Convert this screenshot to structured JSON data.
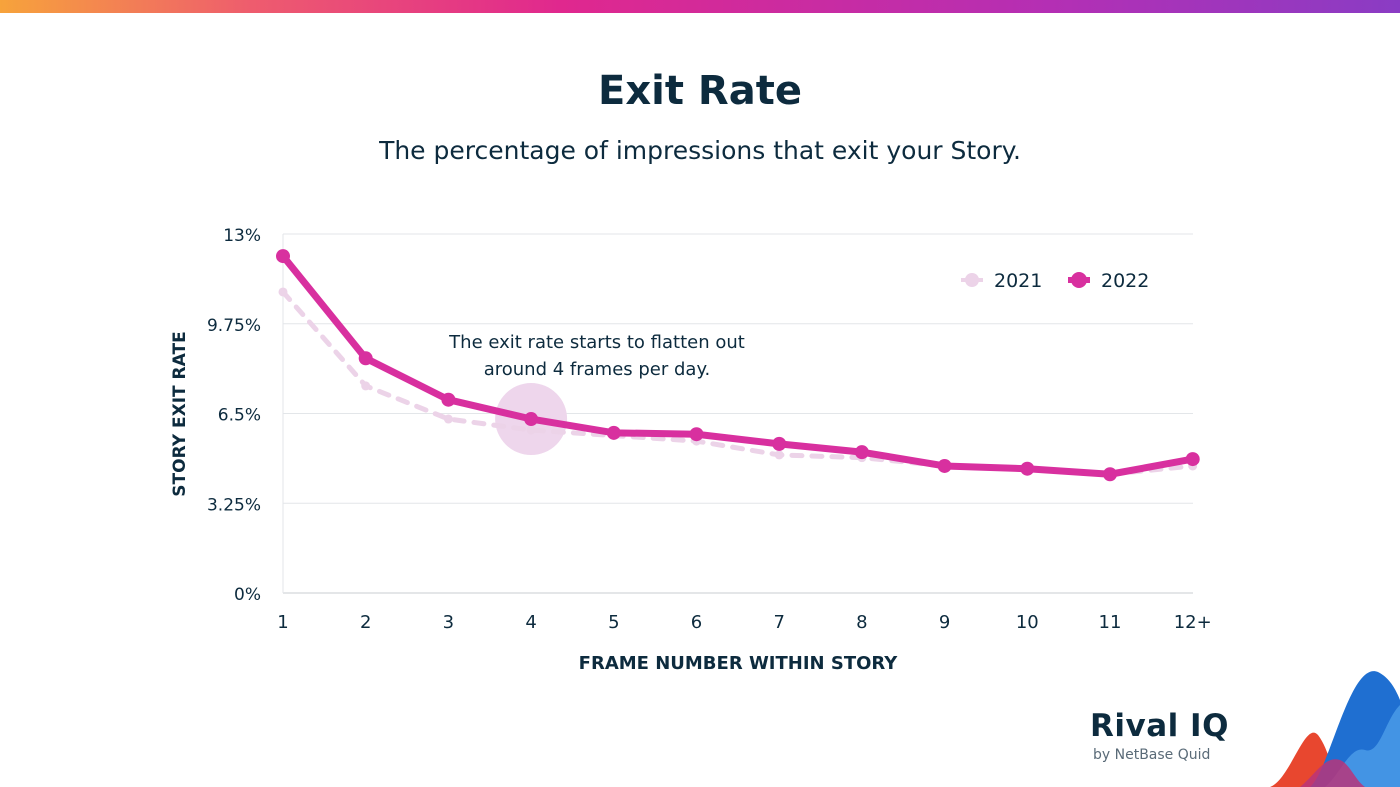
{
  "header": {
    "title": "Exit Rate",
    "subtitle": "The percentage of impressions that exit your Story."
  },
  "chart_data": {
    "type": "line",
    "title": "Exit Rate",
    "subtitle": "The percentage of impressions that exit your Story.",
    "xlabel": "FRAME NUMBER WITHIN STORY",
    "ylabel": "STORY EXIT RATE",
    "categories": [
      "1",
      "2",
      "3",
      "4",
      "5",
      "6",
      "7",
      "8",
      "9",
      "10",
      "11",
      "12+"
    ],
    "y_ticks": [
      "0%",
      "3.25%",
      "6.5%",
      "9.75%",
      "13%"
    ],
    "y_tick_values": [
      0,
      3.25,
      6.5,
      9.75,
      13
    ],
    "ylim": [
      0,
      13
    ],
    "grid": true,
    "legend_position": "top-right",
    "series": [
      {
        "name": "2021",
        "style": "dashed",
        "color": "#ecd3e8",
        "values": [
          10.9,
          7.5,
          6.3,
          5.9,
          5.7,
          5.5,
          5.0,
          4.9,
          4.6,
          4.5,
          4.3,
          4.6
        ]
      },
      {
        "name": "2022",
        "style": "solid",
        "color": "#d8309f",
        "values": [
          12.2,
          8.5,
          7.0,
          6.3,
          5.8,
          5.75,
          5.4,
          5.1,
          4.6,
          4.5,
          4.3,
          4.85
        ]
      }
    ],
    "annotation": {
      "text_line1": "The exit rate starts to flatten out",
      "text_line2": "around 4 frames per day.",
      "at_category": "4",
      "color": "#eed6ec"
    }
  },
  "branding": {
    "logo_text": "Rival IQ",
    "logo_subtext": "by NetBase Quid",
    "colors": {
      "navy": "#0d2b3e",
      "magenta": "#d8309f",
      "light_pink": "#ecd3e8"
    }
  }
}
